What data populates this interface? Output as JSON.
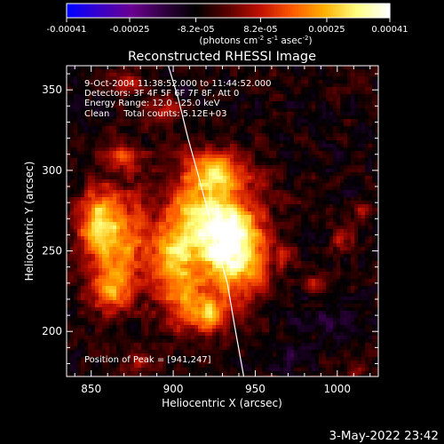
{
  "chart_data": {
    "type": "heatmap",
    "title": "Reconstructed RHESSI Image",
    "colorbar": {
      "range": [
        -0.00041,
        0.00041
      ],
      "tick_labels": [
        "-0.00041",
        "-0.00025",
        "-8.2e-05",
        "8.2e-05",
        "0.00025",
        "0.00041"
      ],
      "tick_values": [
        -0.00041,
        -0.00025,
        -8.2e-05,
        8.2e-05,
        0.00025,
        0.00041
      ],
      "unit_label_main": "(photons cm",
      "unit_label_exp1": "-2",
      "unit_label_mid": " s",
      "unit_label_exp2": "-1",
      "unit_label_end": " asec",
      "unit_label_exp3": "-2",
      "unit_label_close": ")",
      "colors": [
        "#0000ff",
        "#3a00c8",
        "#6a0090",
        "#300040",
        "#000000",
        "#5a0000",
        "#c01000",
        "#ff5a00",
        "#ffb000",
        "#ffff80",
        "#ffffff"
      ]
    },
    "xlabel": "Heliocentric X (arcsec)",
    "ylabel": "Heliocentric Y (arcsec)",
    "xlim": [
      835,
      1025
    ],
    "ylim": [
      172,
      365
    ],
    "x_ticks": [
      850,
      900,
      950,
      1000
    ],
    "y_ticks": [
      200,
      250,
      300,
      350
    ],
    "annotations": [
      "9-Oct-2004 11:38:52.000 to 11:44:52.000",
      "Detectors: 3F 4F 5F 6F 7F 8F, Att 0",
      "Energy Range: 12.0 - 25.0 keV",
      "Clean     Total counts: 5.12E+03"
    ],
    "peak_label": "Position of Peak = [941,247]",
    "peak": [
      941,
      247
    ],
    "limb_curve": {
      "x": [
        897,
        903,
        909,
        915,
        921,
        927,
        933,
        938,
        943
      ],
      "y": [
        365,
        345,
        320,
        298,
        275,
        252,
        230,
        200,
        172
      ]
    },
    "blobs": [
      {
        "x": 938,
        "y": 250,
        "sx": 14,
        "sy": 22,
        "v": 0.00041
      },
      {
        "x": 918,
        "y": 272,
        "sx": 16,
        "sy": 22,
        "v": 0.00032
      },
      {
        "x": 926,
        "y": 300,
        "sx": 11,
        "sy": 8,
        "v": 0.00022
      },
      {
        "x": 900,
        "y": 245,
        "sx": 9,
        "sy": 16,
        "v": 0.00026
      },
      {
        "x": 907,
        "y": 215,
        "sx": 10,
        "sy": 12,
        "v": 0.0002
      },
      {
        "x": 922,
        "y": 210,
        "sx": 6,
        "sy": 8,
        "v": 0.00024
      },
      {
        "x": 866,
        "y": 255,
        "sx": 13,
        "sy": 22,
        "v": 0.0003
      },
      {
        "x": 852,
        "y": 270,
        "sx": 8,
        "sy": 13,
        "v": 0.00022
      },
      {
        "x": 862,
        "y": 225,
        "sx": 9,
        "sy": 9,
        "v": 0.0002
      },
      {
        "x": 870,
        "y": 308,
        "sx": 10,
        "sy": 6,
        "v": 0.00018
      },
      {
        "x": 893,
        "y": 338,
        "sx": 8,
        "sy": 5,
        "v": 0.00016
      },
      {
        "x": 873,
        "y": 355,
        "sx": 7,
        "sy": 5,
        "v": 0.00014
      },
      {
        "x": 955,
        "y": 295,
        "sx": 6,
        "sy": 5,
        "v": 0.0001
      },
      {
        "x": 985,
        "y": 230,
        "sx": 5,
        "sy": 4,
        "v": 0.00012
      },
      {
        "x": 1003,
        "y": 258,
        "sx": 4,
        "sy": 6,
        "v": 0.00016
      },
      {
        "x": 1015,
        "y": 275,
        "sx": 4,
        "sy": 5,
        "v": 0.00012
      },
      {
        "x": 968,
        "y": 247,
        "sx": 5,
        "sy": 5,
        "v": 0.0001
      },
      {
        "x": 1010,
        "y": 175,
        "sx": 4,
        "sy": 4,
        "v": 0.00014
      },
      {
        "x": 880,
        "y": 182,
        "sx": 7,
        "sy": 4,
        "v": 0.00012
      },
      {
        "x": 990,
        "y": 208,
        "sx": 10,
        "sy": 6,
        "v": -0.0001
      },
      {
        "x": 975,
        "y": 186,
        "sx": 8,
        "sy": 5,
        "v": -8e-05
      }
    ],
    "background_level": -7e-05
  },
  "footer": {
    "date": "3-May-2022 23:42"
  }
}
